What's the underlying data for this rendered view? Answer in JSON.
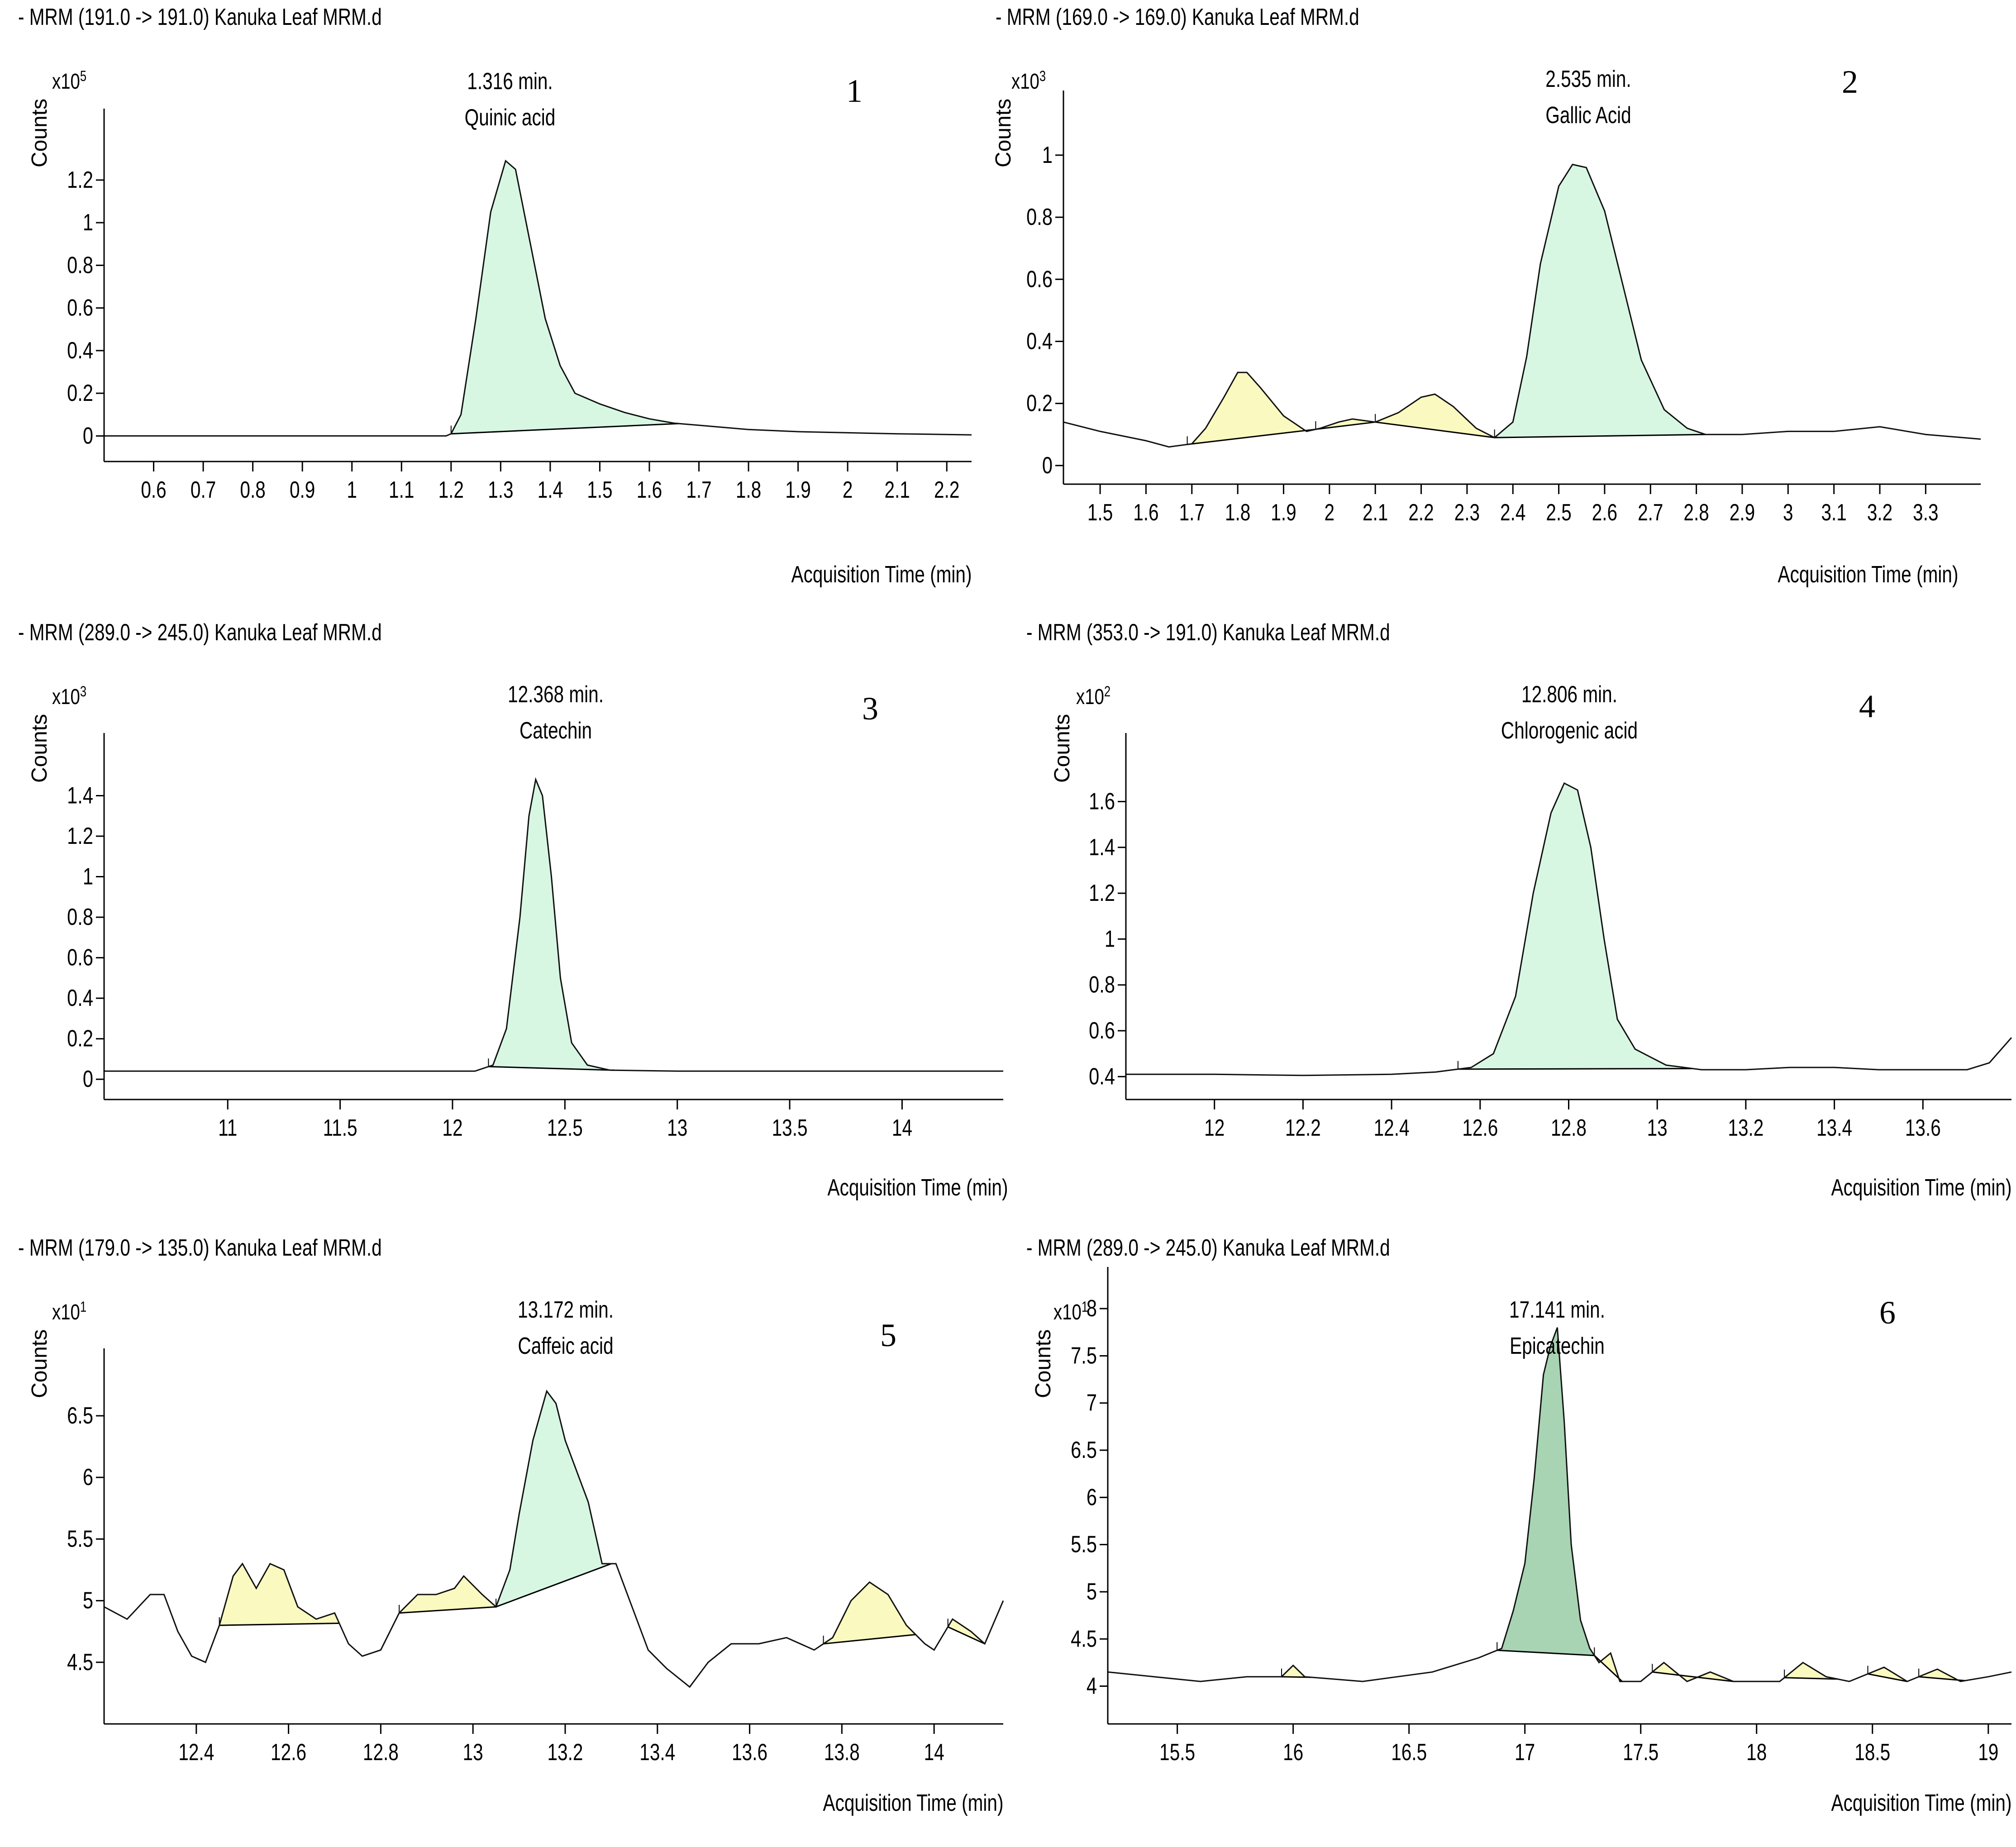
{
  "chart_data": [
    {
      "type": "line",
      "panel_number": "1",
      "header": "- MRM (191.0 -> 191.0) Kanuka Leaf MRM.d",
      "ylabel": "Counts",
      "y_scale": "x10",
      "y_scale_exp": "5",
      "xlabel": "Acquisition Time (min)",
      "xlim": [
        0.5,
        2.25
      ],
      "ylim": [
        -0.12,
        1.45
      ],
      "xticks": [
        0.6,
        0.7,
        0.8,
        0.9,
        1,
        1.1,
        1.2,
        1.3,
        1.4,
        1.5,
        1.6,
        1.7,
        1.8,
        1.9,
        2,
        2.1,
        2.2
      ],
      "yticks": [
        0,
        0.2,
        0.4,
        0.6,
        0.8,
        1,
        1.2
      ],
      "peak_labels": [
        {
          "time": "1.316 min.",
          "name": "Quinic acid",
          "x": 1.316
        }
      ],
      "trace": [
        [
          0.5,
          0.0
        ],
        [
          1.19,
          0.0
        ],
        [
          1.2,
          0.01
        ],
        [
          1.22,
          0.1
        ],
        [
          1.25,
          0.55
        ],
        [
          1.28,
          1.05
        ],
        [
          1.31,
          1.29
        ],
        [
          1.33,
          1.25
        ],
        [
          1.36,
          0.9
        ],
        [
          1.39,
          0.55
        ],
        [
          1.42,
          0.33
        ],
        [
          1.45,
          0.2
        ],
        [
          1.5,
          0.15
        ],
        [
          1.55,
          0.11
        ],
        [
          1.6,
          0.08
        ],
        [
          1.65,
          0.06
        ],
        [
          1.7,
          0.05
        ],
        [
          1.8,
          0.03
        ],
        [
          1.9,
          0.02
        ],
        [
          2.0,
          0.015
        ],
        [
          2.1,
          0.01
        ],
        [
          2.25,
          0.005
        ]
      ],
      "peaks": [
        {
          "start": 1.2,
          "end": 1.66,
          "fill": "#d7f7e3"
        }
      ]
    },
    {
      "type": "line",
      "panel_number": "2",
      "header": "- MRM (169.0 -> 169.0) Kanuka Leaf MRM.d",
      "ylabel": "Counts",
      "y_scale": "x10",
      "y_scale_exp": "3",
      "xlabel": "Acquisition Time (min)",
      "xlim": [
        1.42,
        3.42
      ],
      "ylim": [
        -0.06,
        1.15
      ],
      "xticks": [
        1.5,
        1.6,
        1.7,
        1.8,
        1.9,
        2,
        2.1,
        2.2,
        2.3,
        2.4,
        2.5,
        2.6,
        2.7,
        2.8,
        2.9,
        3,
        3.1,
        3.2,
        3.3
      ],
      "yticks": [
        0,
        0.2,
        0.4,
        0.6,
        0.8,
        1
      ],
      "peak_labels": [
        {
          "time": "2.535 min.",
          "name": "Gallic Acid",
          "x": 2.535
        }
      ],
      "trace": [
        [
          1.42,
          0.14
        ],
        [
          1.5,
          0.11
        ],
        [
          1.6,
          0.08
        ],
        [
          1.65,
          0.06
        ],
        [
          1.7,
          0.07
        ],
        [
          1.73,
          0.12
        ],
        [
          1.77,
          0.22
        ],
        [
          1.8,
          0.3
        ],
        [
          1.82,
          0.3
        ],
        [
          1.85,
          0.25
        ],
        [
          1.9,
          0.16
        ],
        [
          1.95,
          0.11
        ],
        [
          1.98,
          0.12
        ],
        [
          2.02,
          0.14
        ],
        [
          2.05,
          0.15
        ],
        [
          2.1,
          0.14
        ],
        [
          2.15,
          0.17
        ],
        [
          2.2,
          0.22
        ],
        [
          2.23,
          0.23
        ],
        [
          2.27,
          0.19
        ],
        [
          2.32,
          0.12
        ],
        [
          2.36,
          0.09
        ],
        [
          2.4,
          0.14
        ],
        [
          2.43,
          0.35
        ],
        [
          2.46,
          0.65
        ],
        [
          2.5,
          0.9
        ],
        [
          2.53,
          0.97
        ],
        [
          2.56,
          0.96
        ],
        [
          2.6,
          0.82
        ],
        [
          2.64,
          0.58
        ],
        [
          2.68,
          0.34
        ],
        [
          2.73,
          0.18
        ],
        [
          2.78,
          0.12
        ],
        [
          2.82,
          0.1
        ],
        [
          2.9,
          0.1
        ],
        [
          3.0,
          0.11
        ],
        [
          3.1,
          0.11
        ],
        [
          3.2,
          0.125
        ],
        [
          3.3,
          0.1
        ],
        [
          3.42,
          0.085
        ]
      ],
      "peaks": [
        {
          "start": 1.69,
          "end": 1.97,
          "fill": "#fafac0"
        },
        {
          "start": 1.97,
          "end": 2.1,
          "fill": "#fafac0"
        },
        {
          "start": 2.1,
          "end": 2.36,
          "fill": "#fafac0"
        },
        {
          "start": 2.36,
          "end": 2.82,
          "fill": "#d7f7e3"
        }
      ]
    },
    {
      "type": "line",
      "panel_number": "3",
      "header": "- MRM (289.0 -> 245.0) Kanuka Leaf MRM.d",
      "ylabel": "Counts",
      "y_scale": "x10",
      "y_scale_exp": "3",
      "xlabel": "Acquisition Time (min)",
      "xlim": [
        10.45,
        14.45
      ],
      "ylim": [
        -0.1,
        1.62
      ],
      "xticks": [
        11,
        11.5,
        12,
        12.5,
        13,
        13.5,
        14
      ],
      "yticks": [
        0,
        0.2,
        0.4,
        0.6,
        0.8,
        1,
        1.2,
        1.4
      ],
      "peak_labels": [
        {
          "time": "12.368 min.",
          "name": "Catechin",
          "x": 12.368
        }
      ],
      "trace": [
        [
          10.45,
          0.04
        ],
        [
          12.1,
          0.04
        ],
        [
          12.18,
          0.07
        ],
        [
          12.24,
          0.25
        ],
        [
          12.3,
          0.8
        ],
        [
          12.34,
          1.3
        ],
        [
          12.37,
          1.48
        ],
        [
          12.4,
          1.4
        ],
        [
          12.44,
          1.0
        ],
        [
          12.48,
          0.5
        ],
        [
          12.53,
          0.18
        ],
        [
          12.6,
          0.07
        ],
        [
          12.7,
          0.045
        ],
        [
          13.0,
          0.04
        ],
        [
          14.45,
          0.04
        ]
      ],
      "peaks": [
        {
          "start": 12.16,
          "end": 12.72,
          "fill": "#d7f7e3"
        }
      ]
    },
    {
      "type": "line",
      "panel_number": "4",
      "header": "- MRM (353.0 -> 191.0) Kanuka Leaf MRM.d",
      "ylabel": "Counts",
      "y_scale": "x10",
      "y_scale_exp": "2",
      "xlabel": "Acquisition Time (min)",
      "xlim": [
        11.8,
        13.8
      ],
      "ylim": [
        0.3,
        1.82
      ],
      "xticks": [
        12,
        12.2,
        12.4,
        12.6,
        12.8,
        13,
        13.2,
        13.4,
        13.6
      ],
      "yticks": [
        0.4,
        0.6,
        0.8,
        1,
        1.2,
        1.4,
        1.6
      ],
      "peak_labels": [
        {
          "time": "12.806 min.",
          "name": "Chlorogenic acid",
          "x": 12.806
        }
      ],
      "trace": [
        [
          11.8,
          0.41
        ],
        [
          12.0,
          0.41
        ],
        [
          12.2,
          0.405
        ],
        [
          12.4,
          0.41
        ],
        [
          12.5,
          0.42
        ],
        [
          12.58,
          0.44
        ],
        [
          12.63,
          0.5
        ],
        [
          12.68,
          0.75
        ],
        [
          12.72,
          1.2
        ],
        [
          12.76,
          1.55
        ],
        [
          12.79,
          1.68
        ],
        [
          12.82,
          1.65
        ],
        [
          12.85,
          1.4
        ],
        [
          12.88,
          1.0
        ],
        [
          12.91,
          0.65
        ],
        [
          12.95,
          0.52
        ],
        [
          12.98,
          0.49
        ],
        [
          13.02,
          0.45
        ],
        [
          13.1,
          0.43
        ],
        [
          13.2,
          0.43
        ],
        [
          13.3,
          0.44
        ],
        [
          13.4,
          0.44
        ],
        [
          13.5,
          0.43
        ],
        [
          13.6,
          0.43
        ],
        [
          13.7,
          0.43
        ],
        [
          13.75,
          0.46
        ],
        [
          13.8,
          0.57
        ]
      ],
      "peaks": [
        {
          "start": 12.55,
          "end": 13.08,
          "fill": "#d7f7e3"
        }
      ]
    },
    {
      "type": "line",
      "panel_number": "5",
      "header": "- MRM (179.0 -> 135.0) Kanuka Leaf MRM.d",
      "ylabel": "Counts",
      "y_scale": "x10",
      "y_scale_exp": "1",
      "xlabel": "Acquisition Time (min)",
      "xlim": [
        12.2,
        14.15
      ],
      "ylim": [
        4.0,
        6.9
      ],
      "xticks": [
        12.4,
        12.6,
        12.8,
        13,
        13.2,
        13.4,
        13.6,
        13.8,
        14
      ],
      "yticks": [
        4.5,
        5,
        5.5,
        6,
        6.5
      ],
      "peak_labels": [
        {
          "time": "13.172 min.",
          "name": "Caffeic acid",
          "x": 13.172
        }
      ],
      "trace": [
        [
          12.2,
          4.95
        ],
        [
          12.25,
          4.85
        ],
        [
          12.3,
          5.05
        ],
        [
          12.33,
          5.05
        ],
        [
          12.36,
          4.75
        ],
        [
          12.39,
          4.55
        ],
        [
          12.42,
          4.5
        ],
        [
          12.45,
          4.8
        ],
        [
          12.48,
          5.2
        ],
        [
          12.5,
          5.3
        ],
        [
          12.53,
          5.1
        ],
        [
          12.56,
          5.3
        ],
        [
          12.59,
          5.25
        ],
        [
          12.62,
          4.95
        ],
        [
          12.66,
          4.85
        ],
        [
          12.7,
          4.9
        ],
        [
          12.73,
          4.65
        ],
        [
          12.76,
          4.55
        ],
        [
          12.8,
          4.6
        ],
        [
          12.84,
          4.9
        ],
        [
          12.88,
          5.05
        ],
        [
          12.92,
          5.05
        ],
        [
          12.96,
          5.1
        ],
        [
          12.98,
          5.2
        ],
        [
          13.02,
          5.05
        ],
        [
          13.05,
          4.95
        ],
        [
          13.08,
          5.25
        ],
        [
          13.1,
          5.7
        ],
        [
          13.13,
          6.3
        ],
        [
          13.16,
          6.7
        ],
        [
          13.18,
          6.6
        ],
        [
          13.2,
          6.3
        ],
        [
          13.23,
          6.0
        ],
        [
          13.25,
          5.8
        ],
        [
          13.28,
          5.3
        ],
        [
          13.31,
          5.3
        ],
        [
          13.34,
          5.0
        ],
        [
          13.38,
          4.6
        ],
        [
          13.42,
          4.45
        ],
        [
          13.47,
          4.3
        ],
        [
          13.51,
          4.5
        ],
        [
          13.56,
          4.65
        ],
        [
          13.62,
          4.65
        ],
        [
          13.68,
          4.7
        ],
        [
          13.74,
          4.6
        ],
        [
          13.78,
          4.7
        ],
        [
          13.82,
          5.0
        ],
        [
          13.86,
          5.15
        ],
        [
          13.9,
          5.05
        ],
        [
          13.94,
          4.8
        ],
        [
          13.98,
          4.65
        ],
        [
          14.0,
          4.6
        ],
        [
          14.04,
          4.85
        ],
        [
          14.08,
          4.75
        ],
        [
          14.11,
          4.65
        ],
        [
          14.15,
          5.0
        ]
      ],
      "peaks": [
        {
          "start": 12.45,
          "end": 12.71,
          "fill": "#fafac0"
        },
        {
          "start": 12.84,
          "end": 13.05,
          "fill": "#fafac0"
        },
        {
          "start": 13.05,
          "end": 13.3,
          "fill": "#d7f7e3"
        },
        {
          "start": 13.76,
          "end": 13.96,
          "fill": "#fafac0"
        },
        {
          "start": 14.03,
          "end": 14.11,
          "fill": "#fafac0"
        }
      ]
    },
    {
      "type": "line",
      "panel_number": "6",
      "header": "- MRM (289.0 -> 245.0) Kanuka Leaf MRM.d",
      "ylabel": "Counts",
      "y_scale": "x10",
      "y_scale_exp": "1",
      "xlabel": "Acquisition Time (min)",
      "xlim": [
        15.2,
        19.1
      ],
      "ylim": [
        3.6,
        8.25
      ],
      "xticks": [
        15.5,
        16,
        16.5,
        17,
        17.5,
        18,
        18.5,
        19
      ],
      "yticks": [
        4,
        4.5,
        5,
        5.5,
        6,
        6.5,
        7,
        7.5,
        8
      ],
      "peak_labels": [
        {
          "time": "17.141 min.",
          "name": "Epicatechin",
          "x": 17.141
        }
      ],
      "trace": [
        [
          15.2,
          4.15
        ],
        [
          15.4,
          4.1
        ],
        [
          15.6,
          4.05
        ],
        [
          15.8,
          4.1
        ],
        [
          15.95,
          4.1
        ],
        [
          16.0,
          4.22
        ],
        [
          16.05,
          4.1
        ],
        [
          16.3,
          4.05
        ],
        [
          16.45,
          4.1
        ],
        [
          16.6,
          4.15
        ],
        [
          16.8,
          4.3
        ],
        [
          16.9,
          4.4
        ],
        [
          16.95,
          4.8
        ],
        [
          17.0,
          5.3
        ],
        [
          17.04,
          6.2
        ],
        [
          17.08,
          7.3
        ],
        [
          17.11,
          7.6
        ],
        [
          17.14,
          7.8
        ],
        [
          17.17,
          6.8
        ],
        [
          17.2,
          5.5
        ],
        [
          17.24,
          4.7
        ],
        [
          17.28,
          4.4
        ],
        [
          17.32,
          4.25
        ],
        [
          17.37,
          4.35
        ],
        [
          17.41,
          4.05
        ],
        [
          17.5,
          4.05
        ],
        [
          17.6,
          4.25
        ],
        [
          17.7,
          4.05
        ],
        [
          17.8,
          4.15
        ],
        [
          17.9,
          4.05
        ],
        [
          18.1,
          4.05
        ],
        [
          18.2,
          4.25
        ],
        [
          18.3,
          4.1
        ],
        [
          18.4,
          4.05
        ],
        [
          18.55,
          4.2
        ],
        [
          18.65,
          4.05
        ],
        [
          18.78,
          4.18
        ],
        [
          18.88,
          4.05
        ],
        [
          19.0,
          4.1
        ],
        [
          19.1,
          4.15
        ]
      ],
      "peaks": [
        {
          "start": 15.95,
          "end": 16.08,
          "fill": "#fafac0"
        },
        {
          "start": 16.88,
          "end": 17.3,
          "fill": "#a8d4b4"
        },
        {
          "start": 17.3,
          "end": 17.42,
          "fill": "#fafac0"
        },
        {
          "start": 17.55,
          "end": 17.9,
          "fill": "#fafac0"
        },
        {
          "start": 18.12,
          "end": 18.35,
          "fill": "#fafac0"
        },
        {
          "start": 18.48,
          "end": 18.65,
          "fill": "#fafac0"
        },
        {
          "start": 18.7,
          "end": 18.9,
          "fill": "#fafac0"
        }
      ]
    }
  ]
}
